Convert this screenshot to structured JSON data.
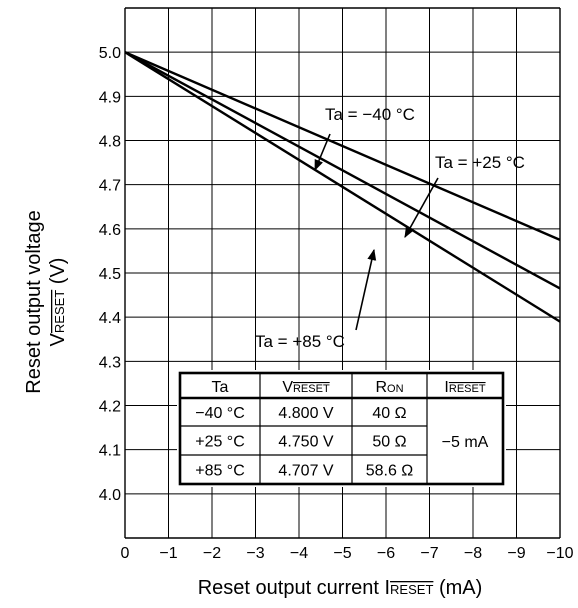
{
  "chart_data": {
    "type": "line",
    "x_values": [
      0,
      -1,
      -2,
      -3,
      -4,
      -5,
      -6,
      -7,
      -8,
      -9,
      -10
    ],
    "xlim": [
      0,
      -10
    ],
    "ylim": [
      4.0,
      5.1
    ],
    "x_ticks": [
      "0",
      "−1",
      "−2",
      "−3",
      "−4",
      "−5",
      "−6",
      "−7",
      "−8",
      "−9",
      "−10"
    ],
    "y_ticks": [
      "4.0",
      "4.1",
      "4.2",
      "4.3",
      "4.4",
      "4.5",
      "4.6",
      "4.7",
      "4.8",
      "4.9",
      "5.0"
    ],
    "grid": true,
    "series": [
      {
        "name": "Ta = −40 °C",
        "x": [
          0,
          -10
        ],
        "y": [
          5.0,
          4.575
        ]
      },
      {
        "name": "Ta = +25 °C",
        "x": [
          0,
          -10
        ],
        "y": [
          5.0,
          4.465
        ]
      },
      {
        "name": "Ta = +85 °C",
        "x": [
          0,
          -10
        ],
        "y": [
          5.0,
          4.39
        ]
      }
    ],
    "xlabel": {
      "text": "Reset output current I",
      "sub": "RESET",
      "unit": " (mA)"
    },
    "ylabel": {
      "line1": "Reset output voltage",
      "line2_v": "V",
      "line2_sub": "RESET",
      "line2_unit": " (V)"
    },
    "table": {
      "headers": [
        {
          "main": "Ta",
          "sub": "",
          "over": false
        },
        {
          "main": "V",
          "sub": "RESET",
          "over": true
        },
        {
          "main": "R",
          "sub": "ON",
          "over": false
        },
        {
          "main": "I",
          "sub": "RESET",
          "over": true
        }
      ],
      "rows": [
        [
          "−40 °C",
          "4.800 V",
          "40 Ω"
        ],
        [
          "+25 °C",
          "4.750 V",
          "50 Ω"
        ],
        [
          "+85 °C",
          "4.707 V",
          "58.6 Ω"
        ]
      ],
      "merged_current": "−5 mA"
    }
  }
}
